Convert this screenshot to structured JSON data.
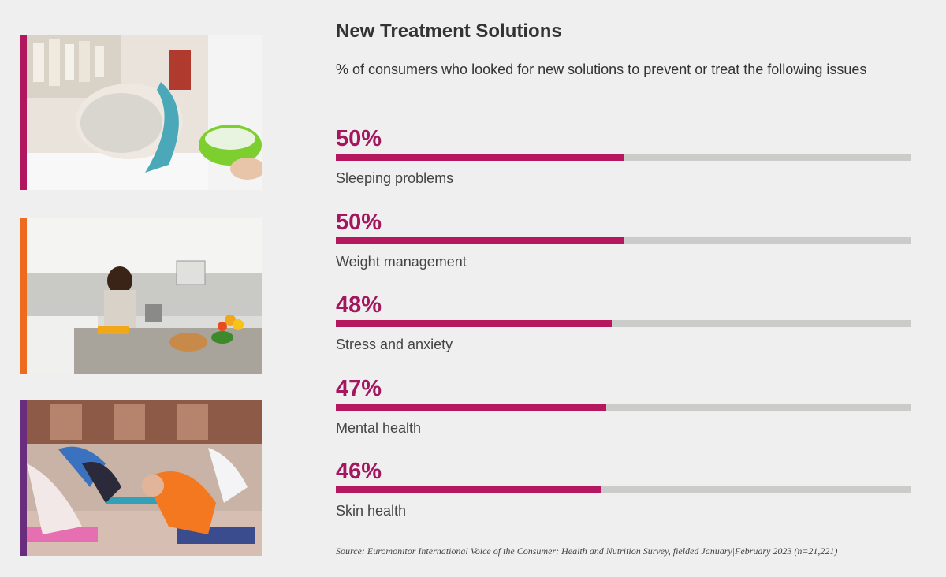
{
  "chart_data": {
    "type": "bar",
    "title": "New Treatment Solutions",
    "subtitle": "% of consumers who looked for new solutions to prevent or treat the following issues",
    "categories": [
      "Sleeping problems",
      "Weight management",
      "Stress and anxiety",
      "Mental health",
      "Skin health"
    ],
    "values": [
      50,
      50,
      48,
      47,
      46
    ],
    "value_labels": [
      "50%",
      "50%",
      "48%",
      "47%",
      "46%"
    ],
    "xlim": [
      0,
      100
    ],
    "orientation": "horizontal",
    "colors": {
      "bar": "#b5185f",
      "track": "#cbcbc9",
      "value_text": "#a4165e"
    }
  },
  "source": "Source: Euromonitor International Voice of the Consumer: Health and Nutrition Survey, fielded January|February 2023 (n=21,221)",
  "photos": [
    {
      "name": "facial-mask-photo",
      "accent": "#b0175f"
    },
    {
      "name": "kitchen-cooking-photo",
      "accent": "#ee6a1f"
    },
    {
      "name": "yoga-class-photo",
      "accent": "#6a2c7d"
    }
  ]
}
